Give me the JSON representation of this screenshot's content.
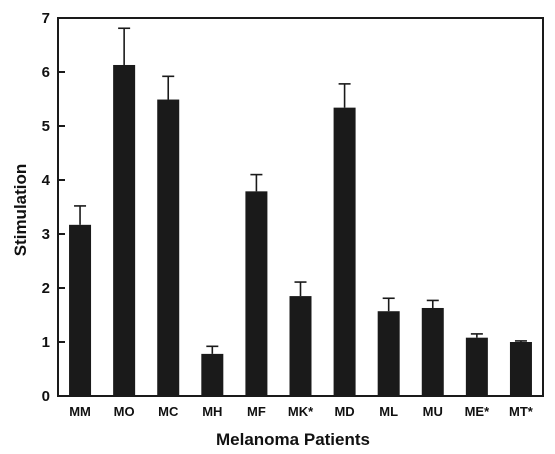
{
  "chart_data": {
    "type": "bar",
    "title": "",
    "xlabel": "Melanoma Patients",
    "ylabel": "Stimulation",
    "ylim": [
      0,
      7
    ],
    "yticks": [
      "0",
      "1",
      "2",
      "3",
      "4",
      "5",
      "6",
      "7"
    ],
    "categories": [
      "MM",
      "MO",
      "MC",
      "MH",
      "MF",
      "MK*",
      "MD",
      "ML",
      "MU",
      "ME*",
      "MT*"
    ],
    "values": [
      3.17,
      6.13,
      5.49,
      0.78,
      3.79,
      1.85,
      5.34,
      1.57,
      1.63,
      1.08,
      1.0
    ],
    "errors": [
      0.35,
      0.68,
      0.43,
      0.14,
      0.31,
      0.26,
      0.44,
      0.24,
      0.14,
      0.07,
      0.02
    ],
    "grid": false,
    "bar_color": "#1a1a1a",
    "error_bar_style": "upper-only"
  }
}
